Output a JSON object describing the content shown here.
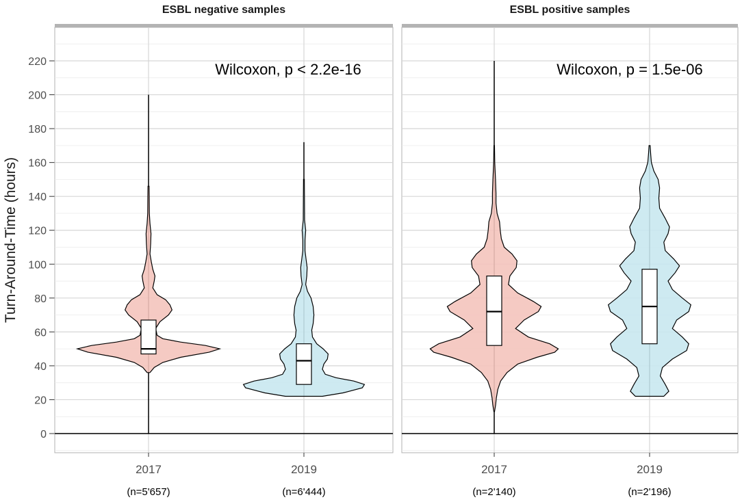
{
  "chart_data": {
    "type": "violin",
    "ylabel": "Turn-Around-Time (hours)",
    "ylim": [
      -10,
      230
    ],
    "yticks": [
      0,
      20,
      40,
      60,
      80,
      100,
      120,
      140,
      160,
      180,
      200,
      220
    ],
    "categories": [
      "2017",
      "2019"
    ],
    "colors": {
      "2017": "#f4c4bd",
      "2019": "#c9e8ef"
    },
    "grid": true,
    "panels": [
      {
        "title": "ESBL negative samples",
        "annotation": "Wilcoxon, p < 2.2e-16",
        "groups": [
          {
            "label": "2017",
            "n_label": "(n=5'657)",
            "box": {
              "q1": 47,
              "median": 50,
              "q3": 67
            },
            "whisker": {
              "low": 0,
              "high": 200
            },
            "density": [
              [
                36,
                0.02
              ],
              [
                39,
                0.08
              ],
              [
                42,
                0.2
              ],
              [
                45,
                0.45
              ],
              [
                48,
                0.85
              ],
              [
                50,
                1.0
              ],
              [
                52,
                0.8
              ],
              [
                54,
                0.45
              ],
              [
                56,
                0.2
              ],
              [
                58,
                0.12
              ],
              [
                62,
                0.1
              ],
              [
                66,
                0.16
              ],
              [
                70,
                0.28
              ],
              [
                73,
                0.33
              ],
              [
                76,
                0.3
              ],
              [
                79,
                0.24
              ],
              [
                82,
                0.12
              ],
              [
                86,
                0.06
              ],
              [
                90,
                0.08
              ],
              [
                93,
                0.09
              ],
              [
                97,
                0.06
              ],
              [
                101,
                0.04
              ],
              [
                106,
                0.02
              ],
              [
                112,
                0.03
              ],
              [
                118,
                0.035
              ],
              [
                124,
                0.02
              ],
              [
                130,
                0.012
              ],
              [
                140,
                0.01
              ],
              [
                146,
                0.008
              ]
            ]
          },
          {
            "label": "2019",
            "n_label": "(n=6'444)",
            "box": {
              "q1": 29,
              "median": 43,
              "q3": 53
            },
            "whisker": {
              "low": 22,
              "high": 172
            },
            "density": [
              [
                22,
                0.26
              ],
              [
                24,
                0.55
              ],
              [
                27,
                0.82
              ],
              [
                29,
                0.85
              ],
              [
                31,
                0.7
              ],
              [
                33,
                0.45
              ],
              [
                35,
                0.3
              ],
              [
                38,
                0.26
              ],
              [
                41,
                0.28
              ],
              [
                44,
                0.33
              ],
              [
                47,
                0.34
              ],
              [
                50,
                0.27
              ],
              [
                53,
                0.18
              ],
              [
                57,
                0.12
              ],
              [
                61,
                0.11
              ],
              [
                65,
                0.13
              ],
              [
                70,
                0.14
              ],
              [
                75,
                0.13
              ],
              [
                80,
                0.1
              ],
              [
                84,
                0.05
              ],
              [
                88,
                0.025
              ],
              [
                93,
                0.04
              ],
              [
                98,
                0.045
              ],
              [
                103,
                0.03
              ],
              [
                108,
                0.015
              ],
              [
                114,
                0.015
              ],
              [
                120,
                0.025
              ],
              [
                126,
                0.01
              ],
              [
                140,
                0.008
              ],
              [
                150,
                0.006
              ]
            ]
          }
        ]
      },
      {
        "title": "ESBL positive samples",
        "annotation": "Wilcoxon, p = 1.5e-06",
        "groups": [
          {
            "label": "2017",
            "n_label": "(n=2'140)",
            "box": {
              "q1": 52,
              "median": 72,
              "q3": 93
            },
            "whisker": {
              "low": 0,
              "high": 220
            },
            "density": [
              [
                13,
                0.005
              ],
              [
                17,
                0.02
              ],
              [
                21,
                0.03
              ],
              [
                26,
                0.05
              ],
              [
                31,
                0.09
              ],
              [
                36,
                0.18
              ],
              [
                41,
                0.33
              ],
              [
                45,
                0.6
              ],
              [
                48,
                0.85
              ],
              [
                50,
                0.9
              ],
              [
                53,
                0.78
              ],
              [
                57,
                0.48
              ],
              [
                62,
                0.3
              ],
              [
                67,
                0.42
              ],
              [
                72,
                0.62
              ],
              [
                75,
                0.66
              ],
              [
                78,
                0.55
              ],
              [
                83,
                0.33
              ],
              [
                88,
                0.2
              ],
              [
                93,
                0.22
              ],
              [
                98,
                0.31
              ],
              [
                102,
                0.32
              ],
              [
                106,
                0.25
              ],
              [
                110,
                0.14
              ],
              [
                115,
                0.1
              ],
              [
                120,
                0.085
              ],
              [
                125,
                0.075
              ],
              [
                130,
                0.04
              ],
              [
                136,
                0.025
              ],
              [
                142,
                0.025
              ],
              [
                150,
                0.018
              ],
              [
                160,
                0.008
              ],
              [
                170,
                0.004
              ]
            ]
          },
          {
            "label": "2019",
            "n_label": "(n=2'196)",
            "box": {
              "q1": 53,
              "median": 75,
              "q3": 97
            },
            "whisker": {
              "low": 22,
              "high": 170
            },
            "density": [
              [
                22,
                0.2
              ],
              [
                25,
                0.27
              ],
              [
                29,
                0.22
              ],
              [
                34,
                0.15
              ],
              [
                39,
                0.18
              ],
              [
                44,
                0.32
              ],
              [
                49,
                0.52
              ],
              [
                53,
                0.55
              ],
              [
                57,
                0.46
              ],
              [
                62,
                0.32
              ],
              [
                67,
                0.38
              ],
              [
                72,
                0.55
              ],
              [
                76,
                0.58
              ],
              [
                80,
                0.46
              ],
              [
                85,
                0.32
              ],
              [
                90,
                0.26
              ],
              [
                95,
                0.36
              ],
              [
                99,
                0.42
              ],
              [
                103,
                0.34
              ],
              [
                108,
                0.22
              ],
              [
                113,
                0.2
              ],
              [
                118,
                0.26
              ],
              [
                122,
                0.28
              ],
              [
                127,
                0.22
              ],
              [
                133,
                0.14
              ],
              [
                139,
                0.13
              ],
              [
                145,
                0.14
              ],
              [
                150,
                0.12
              ],
              [
                155,
                0.06
              ],
              [
                160,
                0.025
              ],
              [
                165,
                0.015
              ],
              [
                170,
                0.008
              ]
            ]
          }
        ]
      }
    ]
  }
}
